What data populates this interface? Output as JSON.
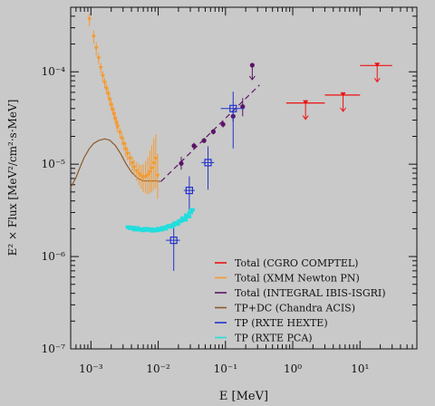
{
  "chart_data": {
    "type": "scatter",
    "title": "",
    "xlabel": "E [MeV]",
    "ylabel": "E² × Flux [MeV²/cm²·s·MeV]",
    "xscale": "log",
    "yscale": "log",
    "xlim": [
      0.0005,
      70
    ],
    "ylim": [
      1e-07,
      0.0005
    ],
    "x_ticks": [
      {
        "value": 0.001,
        "label": "10⁻³"
      },
      {
        "value": 0.01,
        "label": "10⁻²"
      },
      {
        "value": 0.1,
        "label": "10⁻¹"
      },
      {
        "value": 1,
        "label": "10⁰"
      },
      {
        "value": 10,
        "label": "10¹"
      }
    ],
    "y_ticks": [
      {
        "value": 1e-07,
        "label": "10⁻⁷"
      },
      {
        "value": 1e-06,
        "label": "10⁻⁶"
      },
      {
        "value": 1e-05,
        "label": "10⁻⁵"
      },
      {
        "value": 0.0001,
        "label": "10⁻⁴"
      }
    ],
    "legend_position": "lower-right",
    "colors": {
      "background": "#c9c9c9",
      "comptel": "#ee1111",
      "xmm": "#f59a2e",
      "integral": "#5a1566",
      "chandra": "#8b5a2b",
      "hexte": "#2233cc",
      "pca": "#22dddd"
    },
    "series": [
      {
        "name": "Total (CGRO COMPTEL)",
        "color": "#ee1111",
        "kind": "upper_limits",
        "points": [
          {
            "x": 1.55,
            "y": 4.6e-05,
            "xlo": 0.8,
            "xhi": 3.0
          },
          {
            "x": 5.6,
            "y": 5.6e-05,
            "xlo": 3.0,
            "xhi": 10.0
          },
          {
            "x": 18.0,
            "y": 0.000117,
            "xlo": 10.0,
            "xhi": 30.0
          }
        ]
      },
      {
        "name": "Total (XMM Newton PN)",
        "color": "#f59a2e",
        "kind": "points",
        "points": [
          {
            "x": 0.00095,
            "y": 0.00037,
            "ylo": 0.00031,
            "yhi": 0.00043
          },
          {
            "x": 0.0011,
            "y": 0.00024,
            "ylo": 0.0002,
            "yhi": 0.00028
          },
          {
            "x": 0.0012,
            "y": 0.00018,
            "ylo": 0.00015,
            "yhi": 0.00021
          },
          {
            "x": 0.0013,
            "y": 0.00014,
            "ylo": 0.00012,
            "yhi": 0.00016
          },
          {
            "x": 0.0014,
            "y": 0.00011,
            "ylo": 9.5e-05,
            "yhi": 0.000125
          },
          {
            "x": 0.0015,
            "y": 9e-05,
            "ylo": 7.8e-05,
            "yhi": 0.000102
          },
          {
            "x": 0.0016,
            "y": 7.6e-05,
            "ylo": 6.6e-05,
            "yhi": 8.6e-05
          },
          {
            "x": 0.0017,
            "y": 6.6e-05,
            "ylo": 5.7e-05,
            "yhi": 7.5e-05
          },
          {
            "x": 0.0018,
            "y": 5.8e-05,
            "ylo": 5e-05,
            "yhi": 6.6e-05
          },
          {
            "x": 0.0019,
            "y": 5e-05,
            "ylo": 4.3e-05,
            "yhi": 5.8e-05
          },
          {
            "x": 0.002,
            "y": 4.4e-05,
            "ylo": 3.8e-05,
            "yhi": 5e-05
          },
          {
            "x": 0.0021,
            "y": 3.9e-05,
            "ylo": 3.4e-05,
            "yhi": 4.5e-05
          },
          {
            "x": 0.0022,
            "y": 3.5e-05,
            "ylo": 3e-05,
            "yhi": 4e-05
          },
          {
            "x": 0.0023,
            "y": 3.1e-05,
            "ylo": 2.7e-05,
            "yhi": 3.6e-05
          },
          {
            "x": 0.0024,
            "y": 2.8e-05,
            "ylo": 2.4e-05,
            "yhi": 3.2e-05
          },
          {
            "x": 0.0025,
            "y": 2.55e-05,
            "ylo": 2.2e-05,
            "yhi": 2.9e-05
          },
          {
            "x": 0.0027,
            "y": 2.2e-05,
            "ylo": 1.9e-05,
            "yhi": 2.5e-05
          },
          {
            "x": 0.0029,
            "y": 1.9e-05,
            "ylo": 1.6e-05,
            "yhi": 2.2e-05
          },
          {
            "x": 0.0031,
            "y": 1.65e-05,
            "ylo": 1.4e-05,
            "yhi": 1.9e-05
          },
          {
            "x": 0.0033,
            "y": 1.45e-05,
            "ylo": 1.2e-05,
            "yhi": 1.7e-05
          },
          {
            "x": 0.0035,
            "y": 1.3e-05,
            "ylo": 1.1e-05,
            "yhi": 1.5e-05
          },
          {
            "x": 0.0038,
            "y": 1.15e-05,
            "ylo": 9.6e-06,
            "yhi": 1.35e-05
          },
          {
            "x": 0.0041,
            "y": 1.02e-05,
            "ylo": 8.4e-06,
            "yhi": 1.22e-05
          },
          {
            "x": 0.0044,
            "y": 9.2e-06,
            "ylo": 7.4e-06,
            "yhi": 1.12e-05
          },
          {
            "x": 0.0048,
            "y": 8.4e-06,
            "ylo": 6.6e-06,
            "yhi": 1.05e-05
          },
          {
            "x": 0.0052,
            "y": 7.8e-06,
            "ylo": 5.9e-06,
            "yhi": 1e-05
          },
          {
            "x": 0.0056,
            "y": 7.4e-06,
            "ylo": 5.4e-06,
            "yhi": 9.8e-06
          },
          {
            "x": 0.006,
            "y": 7.2e-06,
            "ylo": 5e-06,
            "yhi": 1e-05
          },
          {
            "x": 0.0065,
            "y": 7.3e-06,
            "ylo": 4.8e-06,
            "yhi": 1.08e-05
          },
          {
            "x": 0.007,
            "y": 7.6e-06,
            "ylo": 4.7e-06,
            "yhi": 1.2e-05
          },
          {
            "x": 0.0075,
            "y": 8.2e-06,
            "ylo": 4.8e-06,
            "yhi": 1.4e-05
          },
          {
            "x": 0.008,
            "y": 9e-06,
            "ylo": 5e-06,
            "yhi": 1.6e-05
          },
          {
            "x": 0.0086,
            "y": 1.02e-05,
            "ylo": 5.2e-06,
            "yhi": 1.9e-05
          },
          {
            "x": 0.0092,
            "y": 1.15e-05,
            "ylo": 5.5e-06,
            "yhi": 2.1e-05
          },
          {
            "x": 0.0098,
            "y": 7.5e-06,
            "ylo": 4.2e-06,
            "yhi": 1.3e-05
          }
        ]
      },
      {
        "name": "Total (INTEGRAL IBIS-ISGRI)",
        "color": "#5a1566",
        "kind": "points",
        "points": [
          {
            "x": 0.022,
            "y": 1.02e-05,
            "ylo": 8.7e-06,
            "yhi": 1.2e-05
          },
          {
            "x": 0.034,
            "y": 1.58e-05,
            "ylo": 1.48e-05,
            "yhi": 1.7e-05
          },
          {
            "x": 0.048,
            "y": 1.8e-05,
            "ylo": 1.7e-05,
            "yhi": 1.92e-05
          },
          {
            "x": 0.066,
            "y": 2.25e-05,
            "ylo": 2.1e-05,
            "yhi": 2.4e-05
          },
          {
            "x": 0.092,
            "y": 2.7e-05,
            "ylo": 2.5e-05,
            "yhi": 2.9e-05
          },
          {
            "x": 0.13,
            "y": 3.3e-05,
            "ylo": 2.9e-05,
            "yhi": 3.7e-05
          },
          {
            "x": 0.18,
            "y": 4.2e-05,
            "ylo": 3.3e-05,
            "yhi": 5.2e-05
          }
        ],
        "upper_limits": [
          {
            "x": 0.25,
            "y": 0.000118
          }
        ],
        "model_line": {
          "x0": 0.011,
          "y0": 6.5e-06,
          "x1": 0.32,
          "y1": 7.2e-05
        }
      },
      {
        "name": "TP+DC (Chandra ACIS)",
        "color": "#8b5a2b",
        "kind": "curve",
        "curve": [
          [
            0.0005,
            5.6e-06
          ],
          [
            0.0006,
            7.2e-06
          ],
          [
            0.0007,
            9.5e-06
          ],
          [
            0.0008,
            1.2e-05
          ],
          [
            0.00095,
            1.48e-05
          ],
          [
            0.0011,
            1.68e-05
          ],
          [
            0.0013,
            1.8e-05
          ],
          [
            0.0016,
            1.88e-05
          ],
          [
            0.0019,
            1.82e-05
          ],
          [
            0.0023,
            1.6e-05
          ],
          [
            0.0028,
            1.28e-05
          ],
          [
            0.0033,
            1.02e-05
          ],
          [
            0.004,
            8.2e-06
          ],
          [
            0.005,
            7e-06
          ],
          [
            0.006,
            6.6e-06
          ],
          [
            0.0075,
            6.6e-06
          ],
          [
            0.009,
            6.6e-06
          ],
          [
            0.011,
            6.5e-06
          ]
        ]
      },
      {
        "name": "TP (RXTE HEXTE)",
        "color": "#2233cc",
        "kind": "boxes",
        "points": [
          {
            "x": 0.017,
            "y": 1.5e-06,
            "xlo": 0.013,
            "xhi": 0.021,
            "ylo": 7e-07,
            "yhi": 2.3e-06
          },
          {
            "x": 0.029,
            "y": 5.2e-06,
            "xlo": 0.024,
            "xhi": 0.035,
            "ylo": 3.2e-06,
            "yhi": 7.4e-06
          },
          {
            "x": 0.055,
            "y": 1.04e-05,
            "xlo": 0.044,
            "xhi": 0.068,
            "ylo": 5.3e-06,
            "yhi": 1.56e-05
          },
          {
            "x": 0.13,
            "y": 4e-05,
            "xlo": 0.085,
            "xhi": 0.19,
            "ylo": 1.48e-05,
            "yhi": 6.1e-05
          }
        ]
      },
      {
        "name": "TP (RXTE PCA)",
        "color": "#22dddd",
        "kind": "points",
        "points": [
          {
            "x": 0.0036,
            "y": 2.08e-06
          },
          {
            "x": 0.0039,
            "y": 2.02e-06
          },
          {
            "x": 0.0042,
            "y": 2.06e-06
          },
          {
            "x": 0.0045,
            "y": 1.96e-06
          },
          {
            "x": 0.0048,
            "y": 2.04e-06
          },
          {
            "x": 0.0052,
            "y": 1.95e-06
          },
          {
            "x": 0.0056,
            "y": 1.98e-06
          },
          {
            "x": 0.006,
            "y": 1.92e-06
          },
          {
            "x": 0.0065,
            "y": 2e-06
          },
          {
            "x": 0.007,
            "y": 1.94e-06
          },
          {
            "x": 0.0076,
            "y": 1.98e-06
          },
          {
            "x": 0.0082,
            "y": 1.9e-06
          },
          {
            "x": 0.0088,
            "y": 1.96e-06
          },
          {
            "x": 0.0095,
            "y": 1.92e-06
          },
          {
            "x": 0.0102,
            "y": 2e-06
          },
          {
            "x": 0.011,
            "y": 1.95e-06
          },
          {
            "x": 0.0118,
            "y": 2.05e-06
          },
          {
            "x": 0.0127,
            "y": 2e-06
          },
          {
            "x": 0.0136,
            "y": 2.1e-06
          },
          {
            "x": 0.0146,
            "y": 2.15e-06
          },
          {
            "x": 0.0157,
            "y": 2.1e-06
          },
          {
            "x": 0.0168,
            "y": 2.2e-06
          },
          {
            "x": 0.018,
            "y": 2.3e-06
          },
          {
            "x": 0.0193,
            "y": 2.25e-06
          },
          {
            "x": 0.0206,
            "y": 2.4e-06
          },
          {
            "x": 0.022,
            "y": 2.45e-06
          },
          {
            "x": 0.0235,
            "y": 2.6e-06
          },
          {
            "x": 0.025,
            "y": 2.5e-06
          },
          {
            "x": 0.0266,
            "y": 2.8e-06
          },
          {
            "x": 0.0283,
            "y": 2.7e-06
          },
          {
            "x": 0.03,
            "y": 3e-06
          },
          {
            "x": 0.0318,
            "y": 3.2e-06
          }
        ]
      }
    ]
  }
}
